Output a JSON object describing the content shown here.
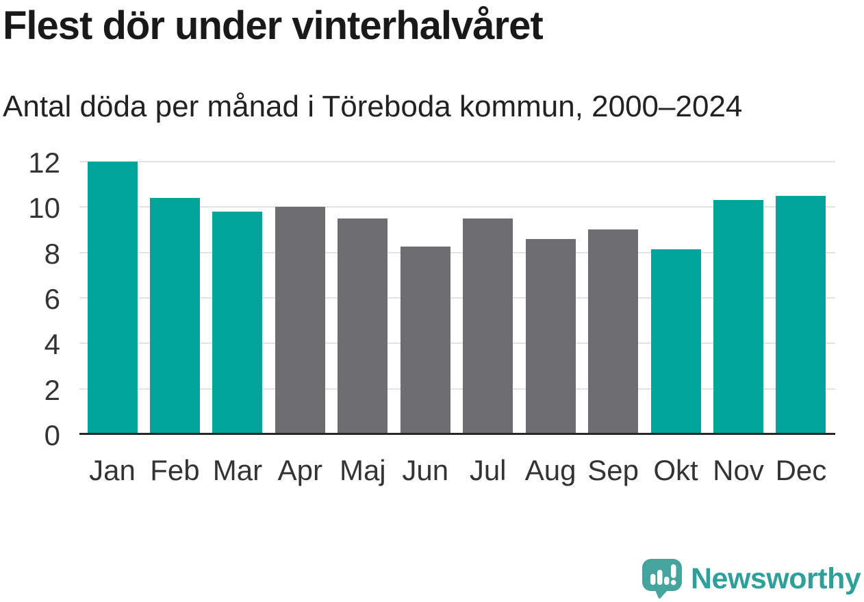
{
  "chart_data": {
    "type": "bar",
    "title": "Flest dör under vinterhalvåret",
    "subtitle": "Antal döda per månad i Töreboda kommun, 2000–2024",
    "categories": [
      "Jan",
      "Feb",
      "Mar",
      "Apr",
      "Maj",
      "Jun",
      "Jul",
      "Aug",
      "Sep",
      "Okt",
      "Nov",
      "Dec"
    ],
    "values": [
      12,
      10.4,
      9.8,
      10,
      9.5,
      8.25,
      9.5,
      8.6,
      9,
      8.15,
      10.3,
      10.5
    ],
    "bar_groups": [
      "winter",
      "winter",
      "winter",
      "summer",
      "summer",
      "summer",
      "summer",
      "summer",
      "summer",
      "winter",
      "winter",
      "winter"
    ],
    "group_colors": {
      "winter": "#00a49a",
      "summer": "#6e6d71"
    },
    "xlabel": "",
    "ylabel": "",
    "y_ticks": [
      0,
      2,
      4,
      6,
      8,
      10,
      12
    ],
    "ylim": [
      0,
      12
    ],
    "grid": "horizontal-only",
    "legend": "none"
  },
  "style_colors": {
    "title_text": "#191919",
    "subtitle_text": "#222222",
    "tick_label_text": "#333333",
    "gridline": "#e3e3e3",
    "axis_line": "#26282a",
    "background": "#ffffff"
  },
  "branding": {
    "logo_text": "Newsworthy",
    "logo_text_color": "#2f9f99",
    "logo_mark_color": "#45a49d",
    "logo_mark_glyph_color": "#ffffff"
  }
}
